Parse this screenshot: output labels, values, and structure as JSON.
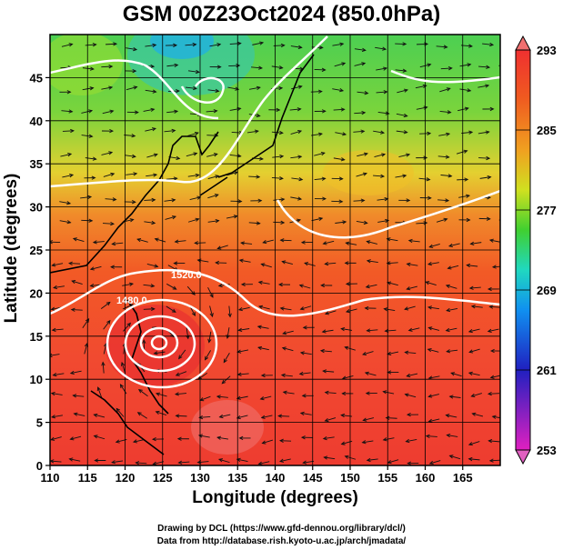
{
  "header": {
    "title": "GSM 00Z23Oct2024 (850.0hPa)"
  },
  "axes": {
    "x_label": "Longitude (degrees)",
    "y_label": "Latitude  (degrees)",
    "x_ticks": [
      "110",
      "115",
      "120",
      "125",
      "130",
      "135",
      "140",
      "145",
      "150",
      "155",
      "160",
      "165"
    ],
    "y_ticks": [
      "0",
      "5",
      "10",
      "15",
      "20",
      "25",
      "30",
      "35",
      "40",
      "45"
    ],
    "x_range": [
      110,
      170
    ],
    "y_range": [
      0,
      50
    ]
  },
  "colorbar": {
    "ticks": [
      "293",
      "285",
      "277",
      "269",
      "261",
      "253"
    ],
    "range": [
      253,
      293
    ],
    "units_note": "",
    "stops": [
      "#e020c0",
      "#3030e0",
      "#1090f0",
      "#20d0d0",
      "#30d030",
      "#a0e020",
      "#f0d020",
      "#f09020",
      "#f05020",
      "#f03030"
    ]
  },
  "contours": {
    "labels": [
      "1520.0",
      "1480.0"
    ]
  },
  "credits": {
    "line1": "Drawing by DCL (https://www.gfd-dennou.org/library/dcl/)",
    "line2": "Data from http://database.rish.kyoto-u.ac.jp/arch/jmadata/"
  }
}
